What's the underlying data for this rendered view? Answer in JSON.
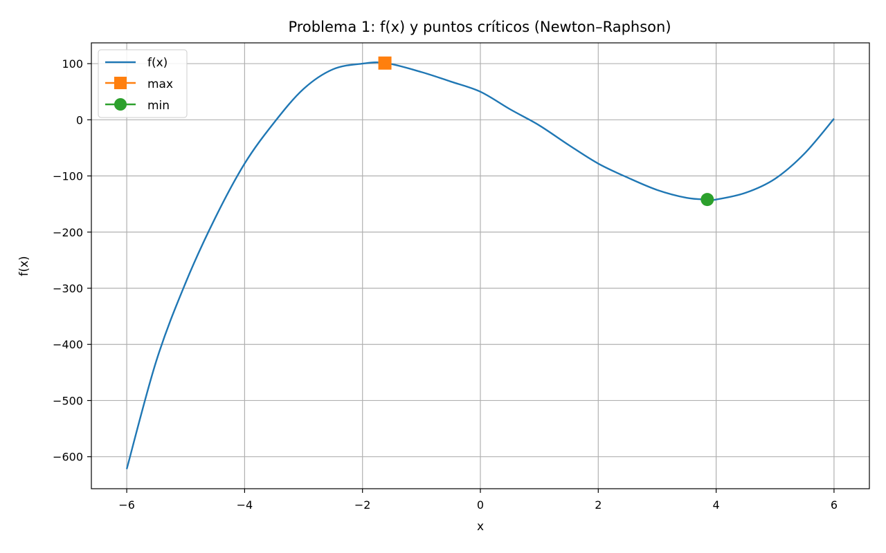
{
  "chart_data": {
    "type": "line",
    "title": "Problema 1: f(x) y puntos críticos (Newton–Raphson)",
    "xlabel": "x",
    "ylabel": "f(x)",
    "xlim": [
      -6.6,
      6.6
    ],
    "ylim": [
      -657,
      137
    ],
    "xticks": [
      -6,
      -4,
      -2,
      0,
      2,
      4,
      6
    ],
    "xtick_labels": [
      "−6",
      "−4",
      "−2",
      "0",
      "2",
      "4",
      "6"
    ],
    "yticks": [
      100,
      0,
      -100,
      -200,
      -300,
      -400,
      -500,
      -600
    ],
    "ytick_labels": [
      "100",
      "0",
      "−100",
      "−200",
      "−300",
      "−400",
      "−500",
      "−600"
    ],
    "grid": true,
    "legend_position": "top-left",
    "series": [
      {
        "name": "f(x)",
        "color": "#1f77b4",
        "x": [
          -6,
          -5.5,
          -5,
          -4.5,
          -4,
          -3.5,
          -3,
          -2.5,
          -2,
          -1.6,
          -1,
          -0.5,
          0,
          0.5,
          1,
          1.5,
          2,
          2.5,
          3,
          3.5,
          3.85,
          4,
          4.5,
          5,
          5.5,
          6
        ],
        "y": [
          -622,
          -430,
          -290,
          -175,
          -78,
          -5,
          55,
          90,
          100,
          101,
          85,
          68,
          50,
          19,
          -10,
          -45,
          -78,
          -103,
          -125,
          -139,
          -142,
          -142,
          -130,
          -105,
          -60,
          2
        ]
      },
      {
        "name": "max",
        "color": "#ff7f0e",
        "marker": "square",
        "x": [
          -1.62
        ],
        "y": [
          101
        ]
      },
      {
        "name": "min",
        "color": "#2ca02c",
        "marker": "circle",
        "x": [
          3.85
        ],
        "y": [
          -142
        ]
      }
    ]
  }
}
